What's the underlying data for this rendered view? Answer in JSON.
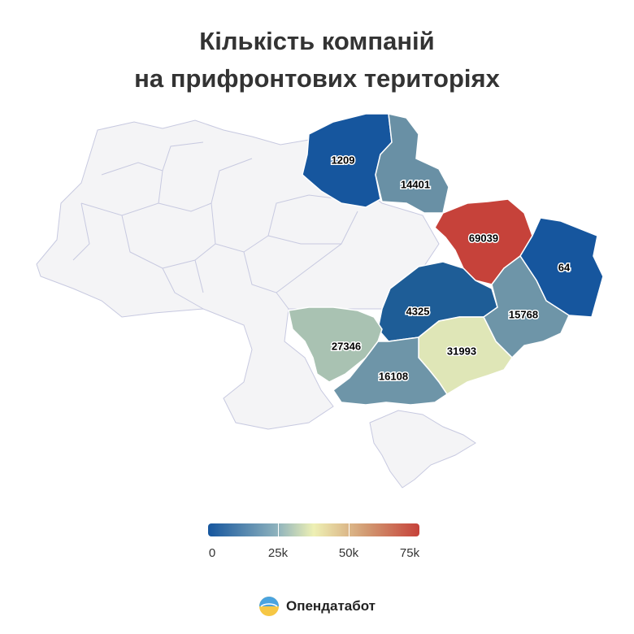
{
  "title": {
    "line1": "Кількість компаній",
    "line2": "на прифронтових територіях"
  },
  "colors": {
    "background_region": "#f4f4f6",
    "region_border": "#c7c9e0",
    "scale": [
      "#16569e",
      "#8fb3bd",
      "#eef0b4",
      "#d29a72",
      "#c6423a"
    ]
  },
  "regions": [
    {
      "key": "sumy",
      "label": "1209",
      "value": 1209
    },
    {
      "key": "kharkiv",
      "label": "14401",
      "value": 14401
    },
    {
      "key": "luhansk-n",
      "label": "69039",
      "value": 69039
    },
    {
      "key": "luhansk",
      "label": "64",
      "value": 64
    },
    {
      "key": "dnipro",
      "label": "4325",
      "value": 4325
    },
    {
      "key": "donetsk",
      "label": "15768",
      "value": 15768
    },
    {
      "key": "mykolaiv",
      "label": "27346",
      "value": 27346
    },
    {
      "key": "zaporizhzhia",
      "label": "31993",
      "value": 31993
    },
    {
      "key": "kherson",
      "label": "16108",
      "value": 16108
    }
  ],
  "legend": {
    "min": 0,
    "max": 75000,
    "ticks": [
      "0",
      "25k",
      "50k",
      "75k"
    ]
  },
  "brand": {
    "name": "Опендатабот",
    "icon": "opendatabot-logo-icon"
  }
}
